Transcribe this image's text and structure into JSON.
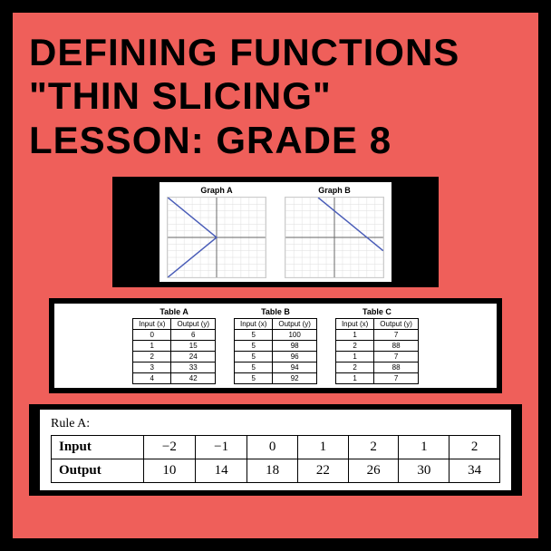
{
  "title": {
    "line1": "Defining Functions",
    "line2": "\"Thin Slicing\"",
    "line3": "Lesson: Grade 8"
  },
  "graphs": {
    "width": 110,
    "height": 90,
    "grid_min": -6,
    "grid_max": 6,
    "grid_color": "#ddd",
    "axis_color": "#666",
    "line_color": "#4a5db8",
    "a": {
      "title": "Graph A",
      "type": "v-shape",
      "points": [
        [
          -6,
          6
        ],
        [
          0,
          0
        ],
        [
          -6,
          -6
        ]
      ]
    },
    "b": {
      "title": "Graph B",
      "type": "line",
      "points": [
        [
          -2,
          6
        ],
        [
          6,
          -2
        ]
      ]
    }
  },
  "tables_mid": {
    "headers": [
      "Input (x)",
      "Output (y)"
    ],
    "a": {
      "title": "Table A",
      "rows": [
        [
          "0",
          "6"
        ],
        [
          "1",
          "15"
        ],
        [
          "2",
          "24"
        ],
        [
          "3",
          "33"
        ],
        [
          "4",
          "42"
        ]
      ]
    },
    "b": {
      "title": "Table B",
      "rows": [
        [
          "5",
          "100"
        ],
        [
          "5",
          "98"
        ],
        [
          "5",
          "96"
        ],
        [
          "5",
          "94"
        ],
        [
          "5",
          "92"
        ]
      ]
    },
    "c": {
      "title": "Table C",
      "rows": [
        [
          "1",
          "7"
        ],
        [
          "2",
          "88"
        ],
        [
          "1",
          "7"
        ],
        [
          "2",
          "88"
        ],
        [
          "1",
          "7"
        ]
      ]
    }
  },
  "rule": {
    "title": "Rule A:",
    "input_label": "Input",
    "output_label": "Output",
    "inputs": [
      "−2",
      "−1",
      "0",
      "1",
      "2",
      "1",
      "2"
    ],
    "outputs": [
      "10",
      "14",
      "18",
      "22",
      "26",
      "30",
      "34"
    ]
  },
  "colors": {
    "frame": "#000000",
    "bg": "#ef5f5a",
    "card": "#ffffff"
  }
}
